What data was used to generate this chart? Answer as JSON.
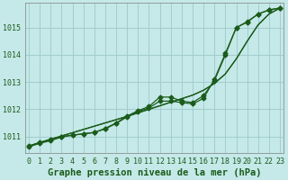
{
  "title": "Graphe pression niveau de la mer (hPa)",
  "background_color": "#c5e8e8",
  "grid_color": "#9dcaca",
  "line_color": "#1a5c1a",
  "x_labels": [
    "0",
    "1",
    "2",
    "3",
    "4",
    "5",
    "6",
    "7",
    "8",
    "9",
    "10",
    "11",
    "12",
    "13",
    "14",
    "15",
    "16",
    "17",
    "18",
    "19",
    "20",
    "21",
    "22",
    "23"
  ],
  "ylim": [
    1010.4,
    1015.9
  ],
  "yticks": [
    1011,
    1012,
    1013,
    1014,
    1015
  ],
  "smooth_series": [
    [
      1010.65,
      1010.78,
      1010.9,
      1011.02,
      1011.14,
      1011.26,
      1011.38,
      1011.5,
      1011.62,
      1011.74,
      1011.87,
      1012.0,
      1012.13,
      1012.26,
      1012.39,
      1012.52,
      1012.7,
      1012.95,
      1013.3,
      1013.85,
      1014.5,
      1015.1,
      1015.5,
      1015.72
    ],
    [
      1010.65,
      1010.78,
      1010.9,
      1011.02,
      1011.14,
      1011.26,
      1011.38,
      1011.5,
      1011.62,
      1011.74,
      1011.87,
      1012.0,
      1012.13,
      1012.26,
      1012.39,
      1012.52,
      1012.7,
      1012.95,
      1013.3,
      1013.85,
      1014.5,
      1015.1,
      1015.5,
      1015.72
    ]
  ],
  "marker_series": [
    [
      1010.65,
      1010.78,
      1010.88,
      1011.0,
      1011.05,
      1011.1,
      1011.15,
      1011.3,
      1011.5,
      1011.75,
      1011.95,
      1012.1,
      1012.45,
      1012.45,
      1012.3,
      1012.25,
      1012.5,
      1013.05,
      1014.0,
      1015.0,
      1015.2,
      1015.5,
      1015.65,
      1015.72
    ],
    [
      1010.62,
      1010.75,
      1010.85,
      1010.98,
      1011.05,
      1011.1,
      1011.15,
      1011.28,
      1011.48,
      1011.72,
      1011.92,
      1012.05,
      1012.3,
      1012.3,
      1012.25,
      1012.2,
      1012.4,
      1013.1,
      1014.05,
      1015.0,
      1015.22,
      1015.5,
      1015.65,
      1015.72
    ]
  ],
  "marker": "D",
  "markersize": 2.5,
  "linewidth": 0.9,
  "title_fontsize": 7.5,
  "tick_fontsize": 6.0
}
